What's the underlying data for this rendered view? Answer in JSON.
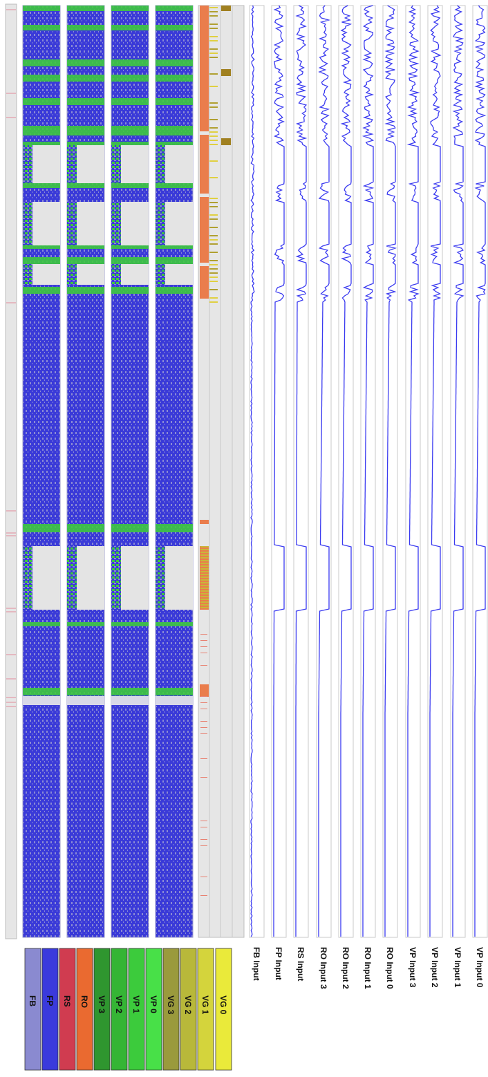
{
  "chart_data": {
    "type": "line",
    "orientation": "rotated-90",
    "legend": {
      "placement": "bottom",
      "items": [
        {
          "label": "FB",
          "color": "#8a8ad0"
        },
        {
          "label": "FP",
          "color": "#3a3adc"
        },
        {
          "label": "RS",
          "color": "#d03c50"
        },
        {
          "label": "RO",
          "color": "#ea6a30"
        },
        {
          "label": "VP 3",
          "color": "#2f962f"
        },
        {
          "label": "VP 2",
          "color": "#35b535"
        },
        {
          "label": "VP 1",
          "color": "#3ccb3c"
        },
        {
          "label": "VP 0",
          "color": "#48e048"
        },
        {
          "label": "VG 3",
          "color": "#9a9a3c"
        },
        {
          "label": "VG 2",
          "color": "#b8b83a"
        },
        {
          "label": "VG 1",
          "color": "#d4d43c"
        },
        {
          "label": "VG 0",
          "color": "#eaea3a"
        }
      ]
    },
    "series": [
      {
        "name": "FB Input"
      },
      {
        "name": "FP Input"
      },
      {
        "name": "RS Input"
      },
      {
        "name": "RO Input 3"
      },
      {
        "name": "RO Input 2"
      },
      {
        "name": "RO Input 1"
      },
      {
        "name": "RO Input 0"
      },
      {
        "name": "VP Input 3"
      },
      {
        "name": "VP Input 2"
      },
      {
        "name": "VP Input 1"
      },
      {
        "name": "VP Input 0"
      }
    ],
    "grid": false
  }
}
